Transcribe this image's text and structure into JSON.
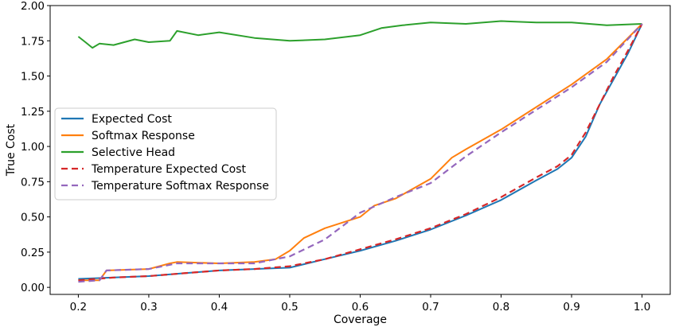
{
  "chart_data": {
    "type": "line",
    "title": "",
    "xlabel": "Coverage",
    "ylabel": "True Cost",
    "xlim": [
      0.16,
      1.04
    ],
    "ylim": [
      -0.05,
      2.0
    ],
    "xticks": [
      0.2,
      0.3,
      0.4,
      0.5,
      0.6,
      0.7,
      0.8,
      0.9,
      1.0
    ],
    "xtick_labels": [
      "0.2",
      "0.3",
      "0.4",
      "0.5",
      "0.6",
      "0.7",
      "0.8",
      "0.9",
      "1.0"
    ],
    "yticks": [
      0.0,
      0.25,
      0.5,
      0.75,
      1.0,
      1.25,
      1.5,
      1.75,
      2.0
    ],
    "ytick_labels": [
      "0.00",
      "0.25",
      "0.50",
      "0.75",
      "1.00",
      "1.25",
      "1.50",
      "1.75",
      "2.00"
    ],
    "grid": false,
    "legend_position": "center-left",
    "series": [
      {
        "name": "Expected Cost",
        "color": "#1f77b4",
        "style": "solid",
        "x": [
          0.2,
          0.25,
          0.3,
          0.35,
          0.4,
          0.45,
          0.5,
          0.55,
          0.6,
          0.65,
          0.7,
          0.75,
          0.8,
          0.85,
          0.88,
          0.9,
          0.92,
          0.94,
          0.96,
          0.98,
          1.0
        ],
        "y": [
          0.06,
          0.07,
          0.08,
          0.1,
          0.12,
          0.13,
          0.14,
          0.2,
          0.26,
          0.33,
          0.41,
          0.51,
          0.62,
          0.76,
          0.84,
          0.92,
          1.07,
          1.3,
          1.48,
          1.66,
          1.87
        ]
      },
      {
        "name": "Softmax Response",
        "color": "#ff7f0e",
        "style": "solid",
        "x": [
          0.2,
          0.23,
          0.24,
          0.3,
          0.33,
          0.34,
          0.4,
          0.45,
          0.48,
          0.5,
          0.52,
          0.55,
          0.6,
          0.62,
          0.65,
          0.7,
          0.73,
          0.75,
          0.8,
          0.85,
          0.9,
          0.95,
          1.0
        ],
        "y": [
          0.05,
          0.05,
          0.12,
          0.13,
          0.17,
          0.18,
          0.17,
          0.18,
          0.2,
          0.26,
          0.35,
          0.42,
          0.5,
          0.58,
          0.63,
          0.77,
          0.92,
          0.98,
          1.12,
          1.28,
          1.44,
          1.62,
          1.87
        ]
      },
      {
        "name": "Selective Head",
        "color": "#2ca02c",
        "style": "solid",
        "x": [
          0.2,
          0.21,
          0.22,
          0.23,
          0.25,
          0.28,
          0.3,
          0.33,
          0.34,
          0.37,
          0.4,
          0.45,
          0.5,
          0.55,
          0.6,
          0.63,
          0.66,
          0.7,
          0.75,
          0.8,
          0.85,
          0.9,
          0.95,
          1.0
        ],
        "y": [
          1.78,
          1.74,
          1.7,
          1.73,
          1.72,
          1.76,
          1.74,
          1.75,
          1.82,
          1.79,
          1.81,
          1.77,
          1.75,
          1.76,
          1.79,
          1.84,
          1.86,
          1.88,
          1.87,
          1.89,
          1.88,
          1.88,
          1.86,
          1.87
        ]
      },
      {
        "name": "Temperature Expected Cost",
        "color": "#d62728",
        "style": "dashed",
        "x": [
          0.2,
          0.25,
          0.3,
          0.35,
          0.4,
          0.45,
          0.5,
          0.55,
          0.6,
          0.65,
          0.7,
          0.75,
          0.8,
          0.85,
          0.88,
          0.9,
          0.92,
          0.94,
          0.96,
          0.98,
          1.0
        ],
        "y": [
          0.05,
          0.07,
          0.08,
          0.1,
          0.12,
          0.13,
          0.15,
          0.2,
          0.27,
          0.34,
          0.42,
          0.52,
          0.64,
          0.78,
          0.86,
          0.94,
          1.1,
          1.3,
          1.5,
          1.68,
          1.87
        ]
      },
      {
        "name": "Temperature Softmax Response",
        "color": "#9467bd",
        "style": "dashed",
        "x": [
          0.2,
          0.23,
          0.24,
          0.3,
          0.33,
          0.34,
          0.4,
          0.45,
          0.5,
          0.55,
          0.6,
          0.65,
          0.7,
          0.75,
          0.8,
          0.85,
          0.9,
          0.95,
          1.0
        ],
        "y": [
          0.04,
          0.05,
          0.12,
          0.13,
          0.16,
          0.17,
          0.17,
          0.17,
          0.22,
          0.34,
          0.53,
          0.64,
          0.74,
          0.93,
          1.1,
          1.26,
          1.42,
          1.6,
          1.87
        ]
      }
    ]
  }
}
